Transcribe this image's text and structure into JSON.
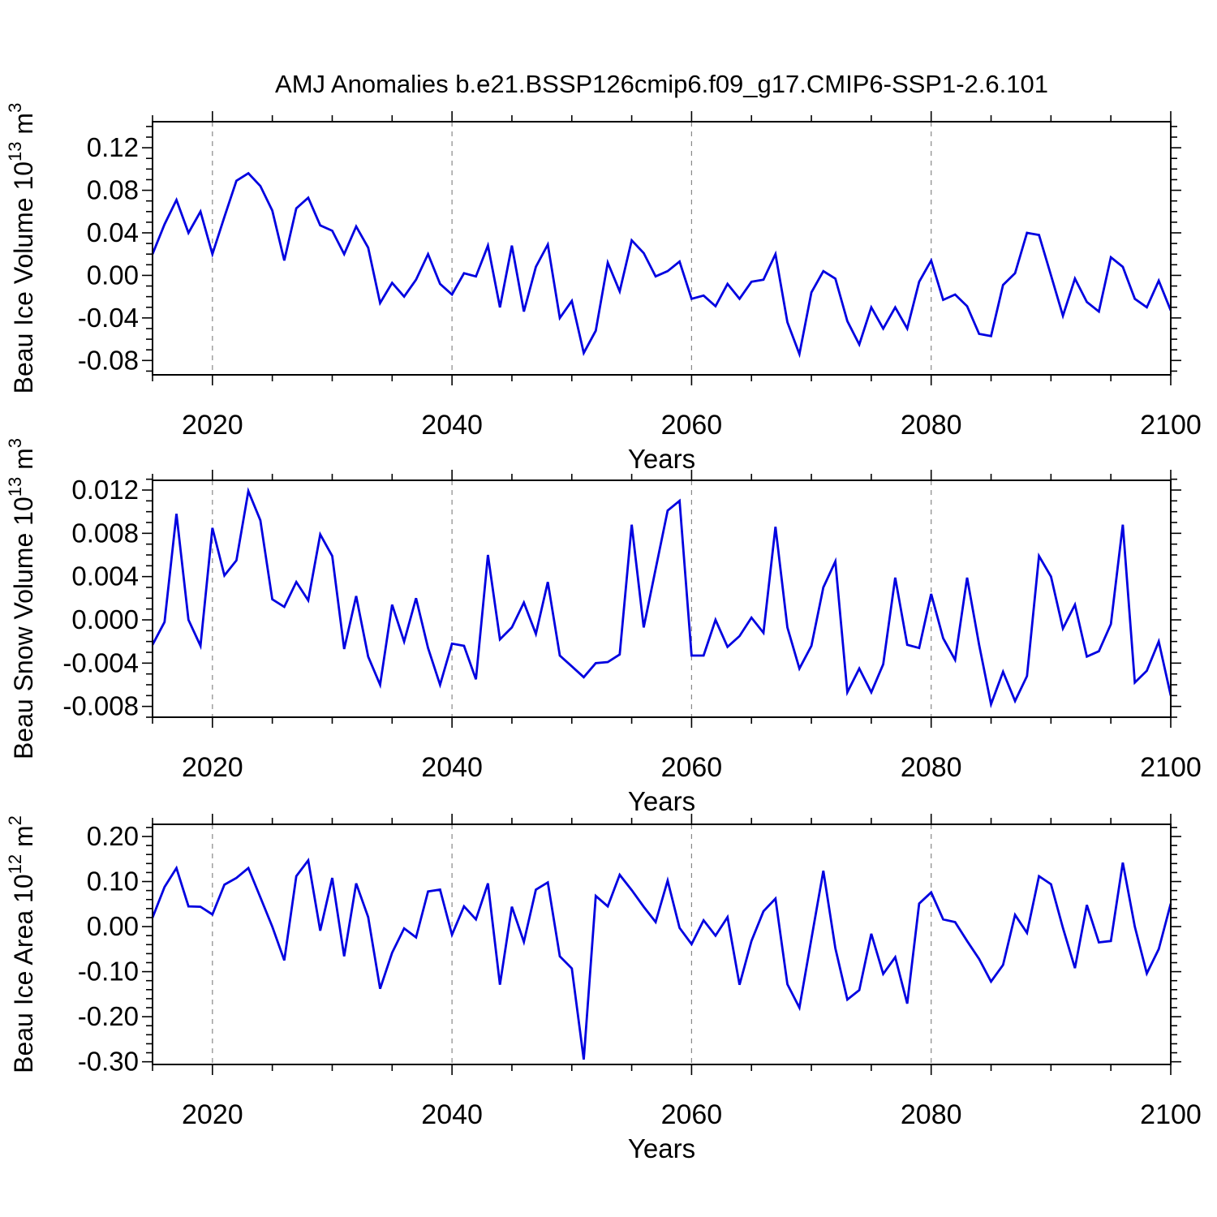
{
  "title": "AMJ Anomalies b.e21.BSSP126cmip6.f09_g17.CMIP6-SSP1-2.6.101",
  "colors": {
    "line": "#0000e0",
    "gridline": "#888888",
    "axis": "#000000"
  },
  "years": [
    2015,
    2016,
    2017,
    2018,
    2019,
    2020,
    2021,
    2022,
    2023,
    2024,
    2025,
    2026,
    2027,
    2028,
    2029,
    2030,
    2031,
    2032,
    2033,
    2034,
    2035,
    2036,
    2037,
    2038,
    2039,
    2040,
    2041,
    2042,
    2043,
    2044,
    2045,
    2046,
    2047,
    2048,
    2049,
    2050,
    2051,
    2052,
    2053,
    2054,
    2055,
    2056,
    2057,
    2058,
    2059,
    2060,
    2061,
    2062,
    2063,
    2064,
    2065,
    2066,
    2067,
    2068,
    2069,
    2070,
    2071,
    2072,
    2073,
    2074,
    2075,
    2076,
    2077,
    2078,
    2079,
    2080,
    2081,
    2082,
    2083,
    2084,
    2085,
    2086,
    2087,
    2088,
    2089,
    2090,
    2091,
    2092,
    2093,
    2094,
    2095,
    2096,
    2097,
    2098,
    2099,
    2100
  ],
  "x_axis": {
    "label": "Years",
    "range": [
      2015,
      2100
    ],
    "major_ticks": [
      2020,
      2040,
      2060,
      2080,
      2100
    ],
    "major_tick_labels": [
      "2020",
      "2040",
      "2060",
      "2080",
      "2100"
    ],
    "minor_step": 5,
    "gridlines": [
      2020,
      2040,
      2060,
      2080
    ]
  },
  "chart_data": [
    {
      "type": "line",
      "name": "ice-volume",
      "ylabel": "Beau Ice Volume 10^13 m^3",
      "ylabel_parts": [
        [
          "Beau Ice Volume 10",
          false
        ],
        [
          "13",
          true
        ],
        [
          " m",
          false
        ],
        [
          "3",
          true
        ]
      ],
      "xlabel": "Years",
      "ylim": [
        -0.0935,
        0.1445
      ],
      "yticks": [
        -0.08,
        -0.04,
        0.0,
        0.04,
        0.08,
        0.12
      ],
      "ytick_labels": [
        "-0.08",
        "-0.04",
        "0.00",
        "0.04",
        "0.08",
        "0.12"
      ],
      "yminor_step": 0.01,
      "values": [
        0.02,
        0.048,
        0.071,
        0.04,
        0.06,
        0.02,
        0.055,
        0.089,
        0.096,
        0.084,
        0.061,
        0.014,
        0.063,
        0.073,
        0.047,
        0.042,
        0.02,
        0.046,
        0.026,
        -0.026,
        -0.007,
        -0.02,
        -0.004,
        0.02,
        -0.008,
        -0.018,
        0.002,
        -0.001,
        0.028,
        -0.03,
        0.028,
        -0.034,
        0.008,
        0.029,
        -0.04,
        -0.024,
        -0.073,
        -0.052,
        0.012,
        -0.015,
        0.033,
        0.021,
        -0.001,
        0.004,
        0.013,
        -0.022,
        -0.019,
        -0.029,
        -0.008,
        -0.022,
        -0.006,
        -0.004,
        0.02,
        -0.044,
        -0.074,
        -0.016,
        0.004,
        -0.003,
        -0.043,
        -0.065,
        -0.03,
        -0.05,
        -0.03,
        -0.05,
        -0.006,
        0.014,
        -0.023,
        -0.018,
        -0.029,
        -0.055,
        -0.057,
        -0.009,
        0.002,
        0.04,
        0.038,
        0.0,
        -0.038,
        -0.003,
        -0.025,
        -0.034,
        0.017,
        0.008,
        -0.022,
        -0.03,
        -0.005,
        -0.033
      ]
    },
    {
      "type": "line",
      "name": "snow-volume",
      "ylabel": "Beau Snow Volume 10^13 m^3",
      "ylabel_parts": [
        [
          "Beau Snow Volume 10",
          false
        ],
        [
          "13",
          true
        ],
        [
          " m",
          false
        ],
        [
          "3",
          true
        ]
      ],
      "xlabel": "Years",
      "ylim": [
        -0.009,
        0.0129
      ],
      "yticks": [
        -0.008,
        -0.004,
        0.0,
        0.004,
        0.008,
        0.012
      ],
      "ytick_labels": [
        "-0.008",
        "-0.004",
        "0.000",
        "0.004",
        "0.008",
        "0.012"
      ],
      "yminor_step": 0.001,
      "values": [
        -0.0023,
        -0.0002,
        0.0098,
        0.0,
        -0.0024,
        0.0085,
        0.0041,
        0.0055,
        0.0119,
        0.0092,
        0.0019,
        0.0012,
        0.0035,
        0.0018,
        0.0079,
        0.0059,
        -0.0027,
        0.0022,
        -0.0034,
        -0.006,
        0.0014,
        -0.002,
        0.002,
        -0.0026,
        -0.006,
        -0.0022,
        -0.0024,
        -0.0055,
        0.006,
        -0.0018,
        -0.0007,
        0.0016,
        -0.0013,
        0.0035,
        -0.0033,
        -0.0043,
        -0.0053,
        -0.004,
        -0.0039,
        -0.0032,
        0.0088,
        -0.0007,
        0.0047,
        0.0101,
        0.011,
        -0.0033,
        -0.0033,
        0.0,
        -0.0025,
        -0.0015,
        0.0002,
        -0.0012,
        0.0086,
        -0.0007,
        -0.0045,
        -0.0024,
        0.003,
        0.0054,
        -0.0067,
        -0.0045,
        -0.0067,
        -0.0041,
        0.0039,
        -0.0023,
        -0.0026,
        0.0024,
        -0.0017,
        -0.0037,
        0.0039,
        -0.0023,
        -0.0078,
        -0.0048,
        -0.0075,
        -0.0052,
        0.0059,
        0.004,
        -0.0008,
        0.0014,
        -0.0034,
        -0.0029,
        -0.0004,
        0.0088,
        -0.0058,
        -0.0047,
        -0.002,
        -0.007
      ]
    },
    {
      "type": "line",
      "name": "ice-area",
      "ylabel": "Beau Ice Area 10^12 m^2",
      "ylabel_parts": [
        [
          "Beau Ice Area 10",
          false
        ],
        [
          "12",
          true
        ],
        [
          " m",
          false
        ],
        [
          "2",
          true
        ]
      ],
      "xlabel": "Years",
      "ylim": [
        -0.306,
        0.227
      ],
      "yticks": [
        -0.3,
        -0.2,
        -0.1,
        0.0,
        0.1,
        0.2
      ],
      "ytick_labels": [
        "-0.30",
        "-0.20",
        "-0.10",
        "0.00",
        "0.10",
        "0.20"
      ],
      "yminor_step": 0.02,
      "values": [
        0.02,
        0.088,
        0.13,
        0.045,
        0.044,
        0.027,
        0.093,
        0.108,
        0.13,
        0.065,
        0.0,
        -0.075,
        0.112,
        0.147,
        -0.009,
        0.108,
        -0.066,
        0.096,
        0.021,
        -0.138,
        -0.058,
        -0.004,
        -0.024,
        0.078,
        0.082,
        -0.018,
        0.045,
        0.016,
        0.096,
        -0.129,
        0.044,
        -0.034,
        0.082,
        0.098,
        -0.066,
        -0.093,
        -0.295,
        0.068,
        0.045,
        0.115,
        0.081,
        0.044,
        0.01,
        0.102,
        -0.003,
        -0.039,
        0.014,
        -0.02,
        0.021,
        -0.129,
        -0.032,
        0.034,
        0.062,
        -0.128,
        -0.18,
        -0.027,
        0.124,
        -0.048,
        -0.162,
        -0.141,
        -0.016,
        -0.105,
        -0.068,
        -0.171,
        0.051,
        0.076,
        0.016,
        0.01,
        -0.032,
        -0.072,
        -0.122,
        -0.085,
        0.026,
        -0.014,
        0.112,
        0.094,
        -0.003,
        -0.092,
        0.048,
        -0.035,
        -0.032,
        0.142,
        0.0,
        -0.104,
        -0.05,
        0.051
      ]
    }
  ]
}
